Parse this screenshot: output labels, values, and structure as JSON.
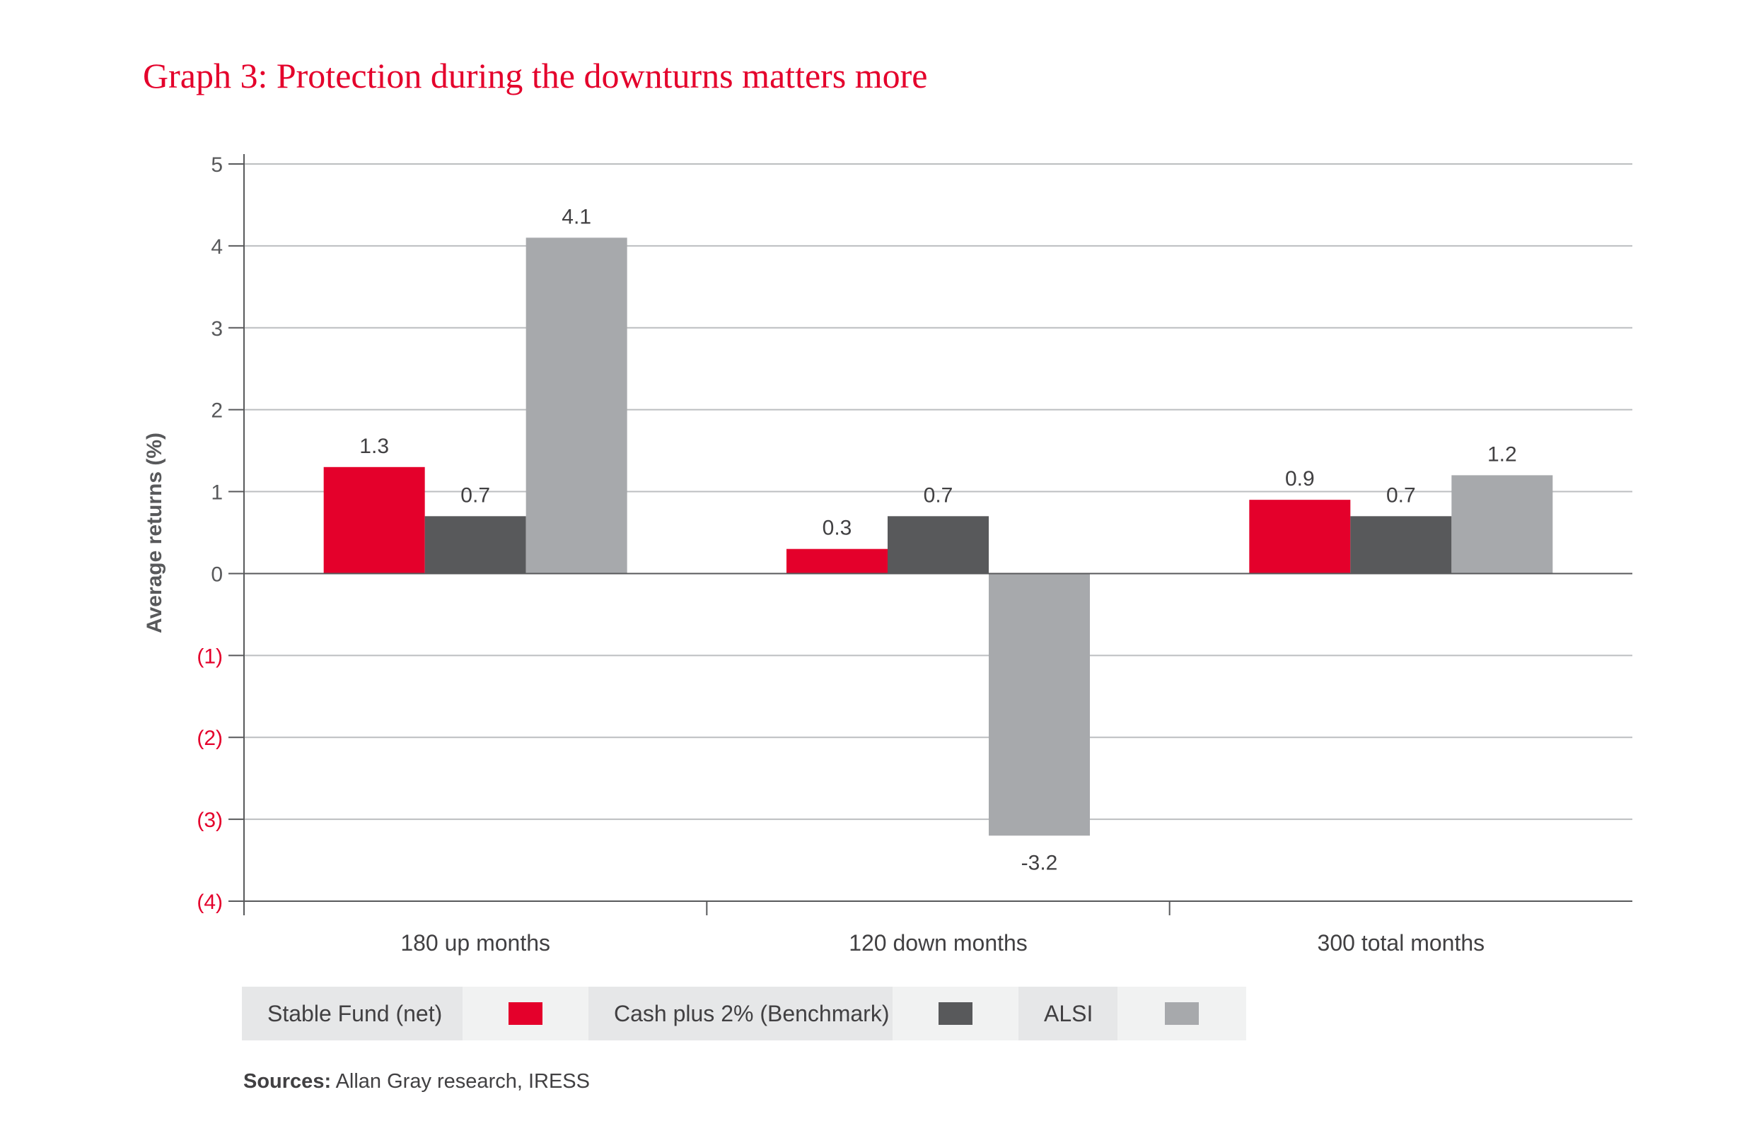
{
  "title": "Graph 3: Protection during the downturns matters more",
  "chart_data": {
    "type": "bar",
    "title": "Graph 3: Protection during the downturns matters more",
    "xlabel": "",
    "ylabel": "Average returns (%)",
    "ylim": [
      -4,
      5
    ],
    "yticks": [
      5,
      4,
      3,
      2,
      1,
      0,
      -1,
      -2,
      -3,
      -4
    ],
    "ytick_labels": [
      "5",
      "4",
      "3",
      "2",
      "1",
      "0",
      "(1)",
      "(2)",
      "(3)",
      "(4)"
    ],
    "negative_tick_color": "#e4002b",
    "grid": true,
    "legend_position": "bottom-left",
    "categories": [
      "180 up months",
      "120 down months",
      "300 total months"
    ],
    "series": [
      {
        "name": "Stable Fund (net)",
        "color": "#e4002b",
        "values": [
          1.3,
          0.3,
          0.9
        ],
        "labels": [
          "1.3",
          "0.3",
          "0.9"
        ]
      },
      {
        "name": "Cash plus 2% (Benchmark)",
        "color": "#58595b",
        "values": [
          0.7,
          0.7,
          0.7
        ],
        "labels": [
          "0.7",
          "0.7",
          "0.7"
        ]
      },
      {
        "name": "ALSI",
        "color": "#a7a9ac",
        "values": [
          4.1,
          -3.2,
          1.2
        ],
        "labels": [
          "4.1",
          "-3.2",
          "1.2"
        ]
      }
    ]
  },
  "legend": {
    "items": [
      {
        "label": "Stable Fund (net)",
        "color": "#e4002b"
      },
      {
        "label": "Cash plus 2% (Benchmark)",
        "color": "#58595b"
      },
      {
        "label": "ALSI",
        "color": "#a7a9ac"
      }
    ]
  },
  "sources": {
    "label": "Sources:",
    "text": "Allan Gray research, IRESS"
  }
}
